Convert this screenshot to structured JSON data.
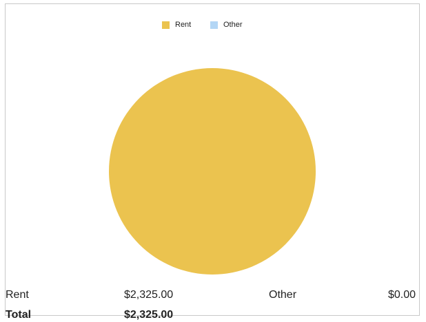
{
  "chart_data": {
    "type": "pie",
    "categories": [
      "Rent",
      "Other"
    ],
    "values": [
      2325,
      0
    ],
    "value_labels": [
      "$2,325.00",
      "$0.00"
    ],
    "colors": [
      "#ebc34f",
      "#b3d6f5"
    ]
  },
  "total": {
    "label": "Total",
    "value": "$2,325.00"
  }
}
